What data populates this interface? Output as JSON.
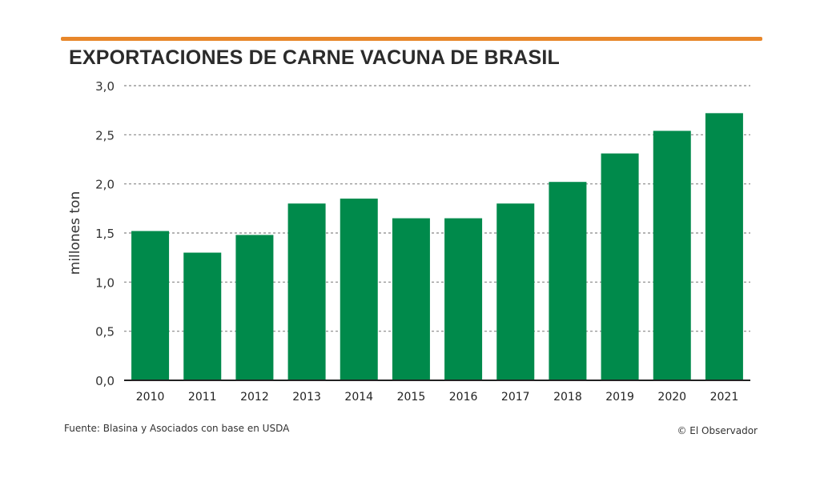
{
  "title": "EXPORTACIONES DE CARNE VACUNA DE BRASIL",
  "source": "Fuente: Blasina y Asociados con base en USDA",
  "credit": "© El Observador",
  "colors": {
    "bar": "#008a4b",
    "accent": "#e8872a",
    "grid": "#888888"
  },
  "chart_data": {
    "type": "bar",
    "title": "EXPORTACIONES DE CARNE VACUNA DE BRASIL",
    "xlabel": "",
    "ylabel": "millones ton",
    "ylim": [
      0,
      3.0
    ],
    "yticks": [
      "0,0",
      "0,5",
      "1,0",
      "1,5",
      "2,0",
      "2,5",
      "3,0"
    ],
    "grid": true,
    "categories": [
      "2010",
      "2011",
      "2012",
      "2013",
      "2014",
      "2015",
      "2016",
      "2017",
      "2018",
      "2019",
      "2020",
      "2021"
    ],
    "values": [
      1.52,
      1.3,
      1.48,
      1.8,
      1.85,
      1.65,
      1.65,
      1.8,
      2.02,
      2.31,
      2.54,
      2.72
    ]
  }
}
